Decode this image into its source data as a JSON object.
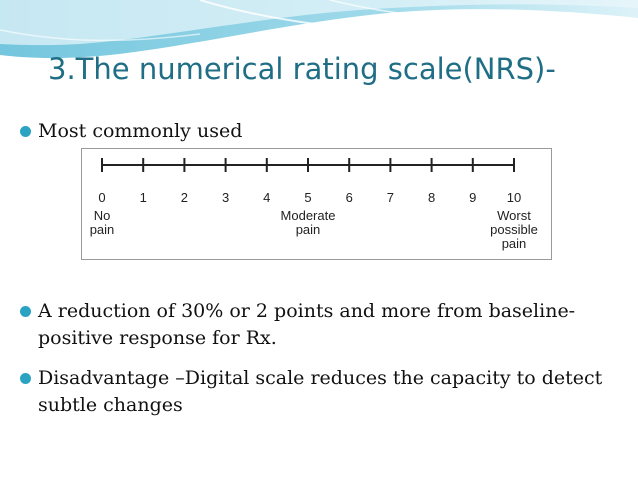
{
  "slide": {
    "title": "3.The numerical rating scale(NRS)-",
    "bullets": [
      "Most commonly used",
      "A reduction of 30% or 2 points and more from baseline- positive response for Rx.",
      "Disadvantage –Digital scale reduces the capacity to detect subtle changes"
    ]
  },
  "scale": {
    "numbers": [
      "0",
      "1",
      "2",
      "3",
      "4",
      "5",
      "6",
      "7",
      "8",
      "9",
      "10"
    ],
    "anchors": [
      {
        "value": 0,
        "lines": [
          "No",
          "pain"
        ]
      },
      {
        "value": 5,
        "lines": [
          "Moderate",
          "pain"
        ]
      },
      {
        "value": 10,
        "lines": [
          "Worst",
          "possible",
          "pain"
        ]
      }
    ]
  },
  "theme": {
    "title_color": "#1f6e85",
    "bullet_color": "#2aa3c3",
    "wave_color": "#6cc5de"
  }
}
